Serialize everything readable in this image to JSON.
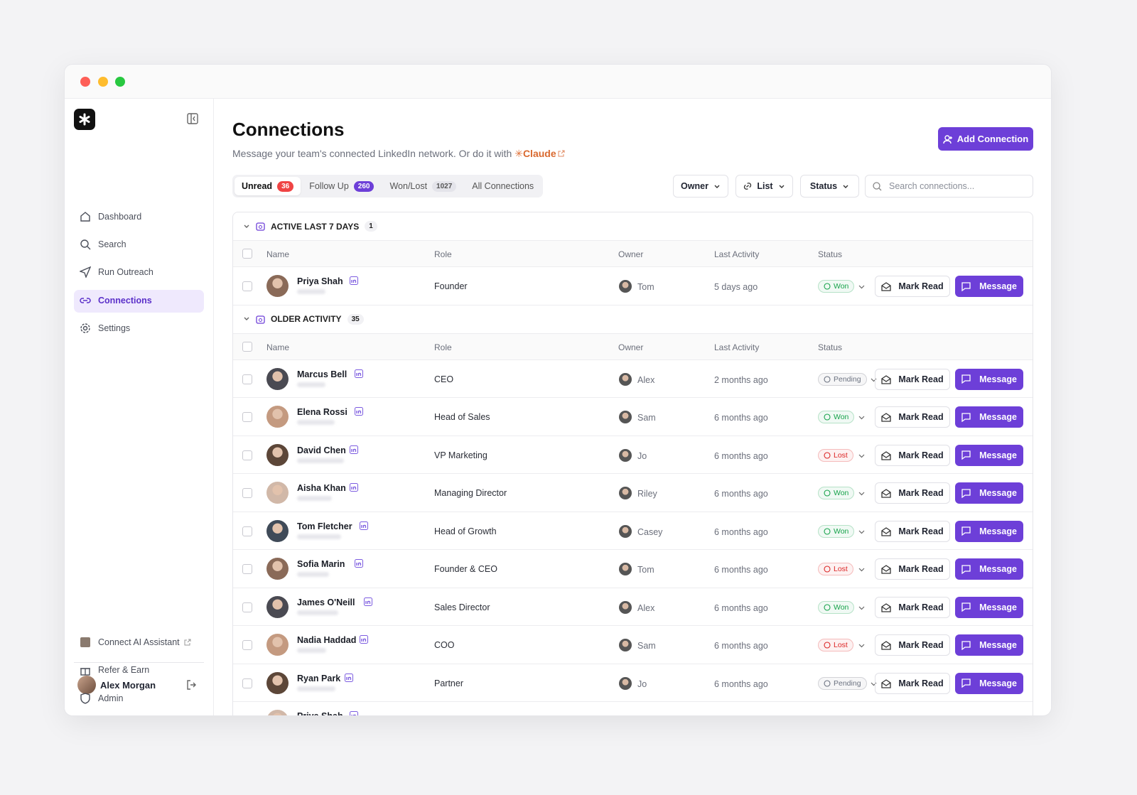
{
  "sidebar": {
    "nav": [
      "Dashboard",
      "Search",
      "Run Outreach",
      "Connections",
      "Settings"
    ],
    "footer_links": [
      "Connect AI Assistant",
      "Refer & Earn",
      "Admin"
    ],
    "user": "Alex Morgan"
  },
  "header": {
    "title": "Connections",
    "subtitle": "Message your team's connected LinkedIn network. Or do it with",
    "claude": "Claude",
    "add_button": "Add Connection"
  },
  "tabs": [
    {
      "label": "Unread",
      "count": 36
    },
    {
      "label": "Follow Up",
      "count": 260
    },
    {
      "label": "Won/Lost",
      "count": 1027
    },
    {
      "label": "All Connections"
    }
  ],
  "filters": [
    "Owner",
    "List",
    "Status"
  ],
  "search_placeholder": "Search connections...",
  "columns": [
    "Name",
    "Role",
    "Owner",
    "Last Activity",
    "Status"
  ],
  "actions": {
    "mark_read": "Mark Read",
    "message": "Message"
  },
  "groups": [
    {
      "title": "ACTIVE LAST 7 DAYS",
      "count": 1,
      "rows": [
        {
          "name": "Priya Shah",
          "role": "Founder",
          "owner": "Tom",
          "last_activity": "5 days ago",
          "status": {
            "label": "Won",
            "color": "#16a34a"
          }
        }
      ]
    },
    {
      "title": "OLDER ACTIVITY",
      "count": 35,
      "rows": [
        {
          "name": "Marcus Bell",
          "role": "CEO",
          "owner": "Alex",
          "last_activity": "2 months ago",
          "status": {
            "label": "Pending",
            "color": "#6b7280"
          }
        },
        {
          "name": "Elena Rossi",
          "role": "Head of Sales",
          "owner": "Sam",
          "last_activity": "6 months ago",
          "status": {
            "label": "Won",
            "color": "#16a34a"
          }
        },
        {
          "name": "David Chen",
          "role": "VP Marketing",
          "owner": "Jo",
          "last_activity": "6 months ago",
          "status": {
            "label": "Lost",
            "color": "#dc2626"
          }
        },
        {
          "name": "Aisha Khan",
          "role": "Managing Director",
          "owner": "Riley",
          "last_activity": "6 months ago",
          "status": {
            "label": "Won",
            "color": "#16a34a"
          }
        },
        {
          "name": "Tom Fletcher",
          "role": "Head of Growth",
          "owner": "Casey",
          "last_activity": "6 months ago",
          "status": {
            "label": "Won",
            "color": "#16a34a"
          }
        },
        {
          "name": "Sofia Marin",
          "role": "Founder & CEO",
          "owner": "Tom",
          "last_activity": "6 months ago",
          "status": {
            "label": "Lost",
            "color": "#dc2626"
          }
        },
        {
          "name": "James O'Neill",
          "role": "Sales Director",
          "owner": "Alex",
          "last_activity": "6 months ago",
          "status": {
            "label": "Won",
            "color": "#16a34a"
          }
        },
        {
          "name": "Nadia Haddad",
          "role": "COO",
          "owner": "Sam",
          "last_activity": "6 months ago",
          "status": {
            "label": "Lost",
            "color": "#dc2626"
          }
        },
        {
          "name": "Ryan Park",
          "role": "Partner",
          "owner": "Jo",
          "last_activity": "6 months ago",
          "status": {
            "label": "Pending",
            "color": "#6b7280"
          }
        },
        {
          "name": "Priya Shah"
        }
      ]
    }
  ]
}
